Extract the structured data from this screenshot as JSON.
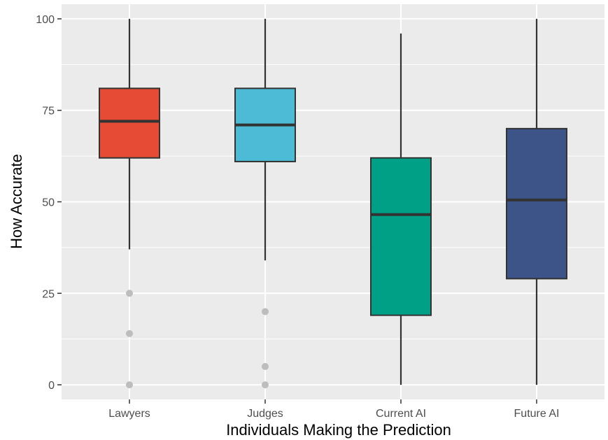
{
  "chart_data": {
    "type": "boxplot",
    "xlabel": "Individuals Making the Prediction",
    "ylabel": "How Accurate",
    "ylim": [
      -4,
      104
    ],
    "y_ticks": [
      0,
      25,
      50,
      75,
      100
    ],
    "y_tick_labels": [
      "0",
      "25",
      "50",
      "75",
      "100"
    ],
    "grid": true,
    "panel_color": "#ebebeb",
    "categories": [
      "Lawyers",
      "Judges",
      "Current AI",
      "Future AI"
    ],
    "boxes": [
      {
        "category": "Lawyers",
        "color": "#e64b35",
        "whisker_low": 37,
        "q1": 62,
        "median": 72,
        "q3": 81,
        "whisker_high": 100,
        "outliers": [
          0,
          14,
          25
        ]
      },
      {
        "category": "Judges",
        "color": "#4dbbd5",
        "whisker_low": 34,
        "q1": 61,
        "median": 71,
        "q3": 81,
        "whisker_high": 100,
        "outliers": [
          0,
          5,
          20
        ]
      },
      {
        "category": "Current AI",
        "color": "#00a087",
        "whisker_low": 0,
        "q1": 19,
        "median": 46.5,
        "q3": 62,
        "whisker_high": 96,
        "outliers": []
      },
      {
        "category": "Future AI",
        "color": "#3c5488",
        "whisker_low": 0,
        "q1": 29,
        "median": 50.5,
        "q3": 70,
        "whisker_high": 100,
        "outliers": []
      }
    ]
  }
}
